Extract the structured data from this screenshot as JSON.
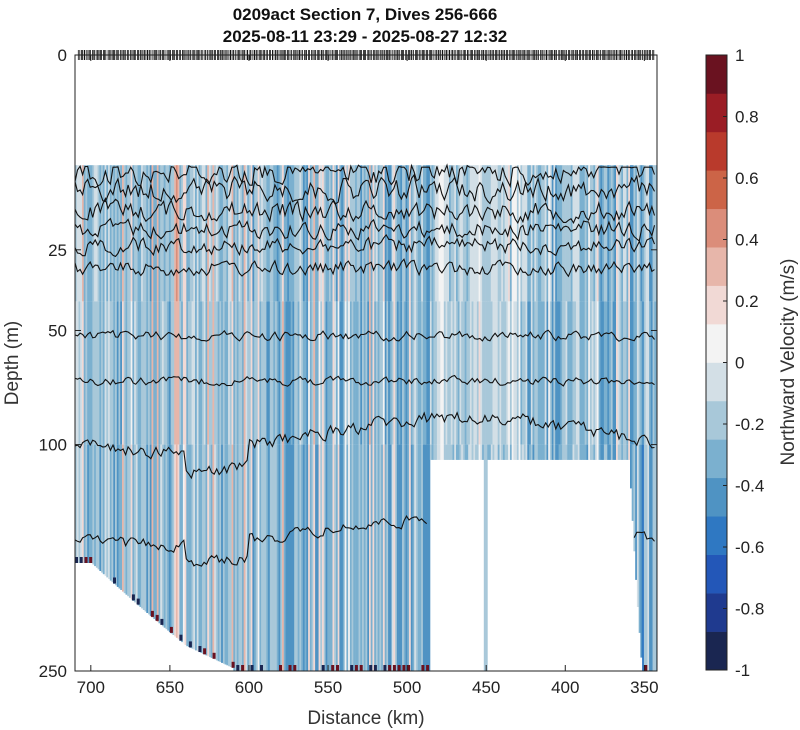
{
  "chart_data": {
    "type": "heatmap",
    "title": [
      "0209act Section 7, Dives 256-666",
      "2025-08-11 23:29 - 2025-08-27 12:32"
    ],
    "xlabel": "Distance (km)",
    "ylabel": "Depth (m)",
    "colorbar_label": "Northward Velocity (m/s)",
    "x_ticks": [
      700,
      650,
      600,
      550,
      500,
      450,
      400,
      350
    ],
    "x_range": [
      710,
      342
    ],
    "y_ticks": [
      0,
      25,
      50,
      100,
      250
    ],
    "y_range": [
      0,
      250
    ],
    "y_scale": "sqrt",
    "colorbar_ticks": [
      1,
      0.8,
      0.6,
      0.4,
      0.2,
      0,
      -0.2,
      -0.4,
      -0.6,
      -0.8,
      -1
    ],
    "color_range": [
      -1,
      1
    ],
    "colormap": [
      "#1a2651",
      "#1f3a8f",
      "#2357b8",
      "#2f78c2",
      "#4f93c3",
      "#7bb0cf",
      "#a8c8d9",
      "#d3dfe6",
      "#f3f3f3",
      "#f1d9d5",
      "#e7b6aa",
      "#db8d7a",
      "#cc6447",
      "#b93a2c",
      "#9a1d25",
      "#6a1220"
    ],
    "top_data_depth_m": 8,
    "contour_depths_m": [
      9,
      12,
      16,
      20,
      24,
      30,
      52,
      70,
      95,
      150
    ],
    "dive_count": 411
  }
}
